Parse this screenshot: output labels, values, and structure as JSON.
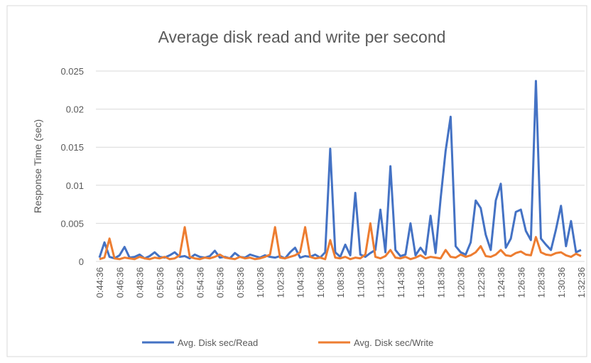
{
  "chart_data": {
    "type": "line",
    "title": "Average disk read and write per second",
    "y_label": "Response Time (sec)",
    "categories": [
      "0:44:36",
      null,
      null,
      null,
      "0:46:36",
      null,
      null,
      null,
      "0:48:36",
      null,
      null,
      null,
      "0:50:36",
      null,
      null,
      null,
      "0:52:36",
      null,
      null,
      null,
      "0:54:36",
      null,
      null,
      null,
      "0:56:36",
      null,
      null,
      null,
      "0:58:36",
      null,
      null,
      null,
      "1:00:36",
      null,
      null,
      null,
      "1:02:36",
      null,
      null,
      null,
      "1:04:36",
      null,
      null,
      null,
      "1:06:36",
      null,
      null,
      null,
      "1:08:36",
      null,
      null,
      null,
      "1:10:36",
      null,
      null,
      null,
      "1:12:36",
      null,
      null,
      null,
      "1:14:36",
      null,
      null,
      null,
      "1:16:36",
      null,
      null,
      null,
      "1:18:36",
      null,
      null,
      null,
      "1:20:36",
      null,
      null,
      null,
      "1:22:36",
      null,
      null,
      null,
      "1:24:36",
      null,
      null,
      null,
      "1:26:36",
      null,
      null,
      null,
      "1:28:36",
      null,
      null,
      null,
      "1:30:36",
      null,
      null,
      null,
      "1:32:36"
    ],
    "series": [
      {
        "name": "Avg. Disk sec/Read",
        "color": "#4472c4",
        "values": [
          0.0005,
          0.0025,
          0.0006,
          0.0004,
          0.0008,
          0.0019,
          0.0005,
          0.0006,
          0.0009,
          0.0004,
          0.0007,
          0.0012,
          0.0006,
          0.0005,
          0.0008,
          0.0012,
          0.0006,
          0.0007,
          0.0004,
          0.0009,
          0.0006,
          0.0005,
          0.0007,
          0.0014,
          0.0005,
          0.0006,
          0.0004,
          0.0011,
          0.0006,
          0.0005,
          0.0009,
          0.0007,
          0.0005,
          0.0008,
          0.0006,
          0.0005,
          0.0007,
          0.0004,
          0.0012,
          0.0018,
          0.0005,
          0.0007,
          0.0006,
          0.0009,
          0.0005,
          0.0012,
          0.0148,
          0.0012,
          0.0006,
          0.0022,
          0.0008,
          0.009,
          0.0009,
          0.0006,
          0.0011,
          0.0015,
          0.0068,
          0.0012,
          0.0125,
          0.0015,
          0.0007,
          0.0009,
          0.005,
          0.0008,
          0.0018,
          0.0009,
          0.006,
          0.0011,
          0.0082,
          0.0145,
          0.019,
          0.002,
          0.0012,
          0.0009,
          0.0025,
          0.008,
          0.007,
          0.0035,
          0.0015,
          0.008,
          0.0102,
          0.0018,
          0.003,
          0.0065,
          0.0068,
          0.004,
          0.0028,
          0.0237,
          0.003,
          0.0022,
          0.0015,
          0.0042,
          0.0073,
          0.002,
          0.0053,
          0.0012,
          0.0015
        ]
      },
      {
        "name": "Avg. Disk sec/Write",
        "color": "#ed7d31",
        "values": [
          0.0003,
          0.0005,
          0.003,
          0.0004,
          0.0003,
          0.0005,
          0.0004,
          0.0003,
          0.0006,
          0.0004,
          0.0003,
          0.0005,
          0.0004,
          0.0006,
          0.0003,
          0.0004,
          0.0008,
          0.0045,
          0.0006,
          0.0004,
          0.0003,
          0.0005,
          0.0004,
          0.0006,
          0.0009,
          0.0005,
          0.0004,
          0.0003,
          0.0006,
          0.0004,
          0.0005,
          0.0003,
          0.0004,
          0.0006,
          0.0009,
          0.0045,
          0.0005,
          0.0004,
          0.0006,
          0.0008,
          0.0012,
          0.0045,
          0.0006,
          0.0004,
          0.0005,
          0.0003,
          0.0028,
          0.0005,
          0.0004,
          0.0006,
          0.0003,
          0.0005,
          0.0004,
          0.0009,
          0.005,
          0.0006,
          0.0004,
          0.0007,
          0.0015,
          0.0005,
          0.0004,
          0.0006,
          0.0003,
          0.0005,
          0.0008,
          0.0004,
          0.0006,
          0.0005,
          0.0004,
          0.0015,
          0.0006,
          0.0005,
          0.0009,
          0.0006,
          0.0008,
          0.0012,
          0.002,
          0.0007,
          0.0006,
          0.0009,
          0.0015,
          0.0008,
          0.0007,
          0.0011,
          0.0013,
          0.0009,
          0.0008,
          0.0032,
          0.0012,
          0.0009,
          0.0008,
          0.0011,
          0.0012,
          0.0008,
          0.0006,
          0.001,
          0.0007
        ]
      }
    ],
    "ylim": [
      0,
      0.025
    ],
    "yticks": [
      0,
      0.005,
      0.01,
      0.015,
      0.02,
      0.025
    ],
    "grid": true,
    "legend": "bottom"
  }
}
